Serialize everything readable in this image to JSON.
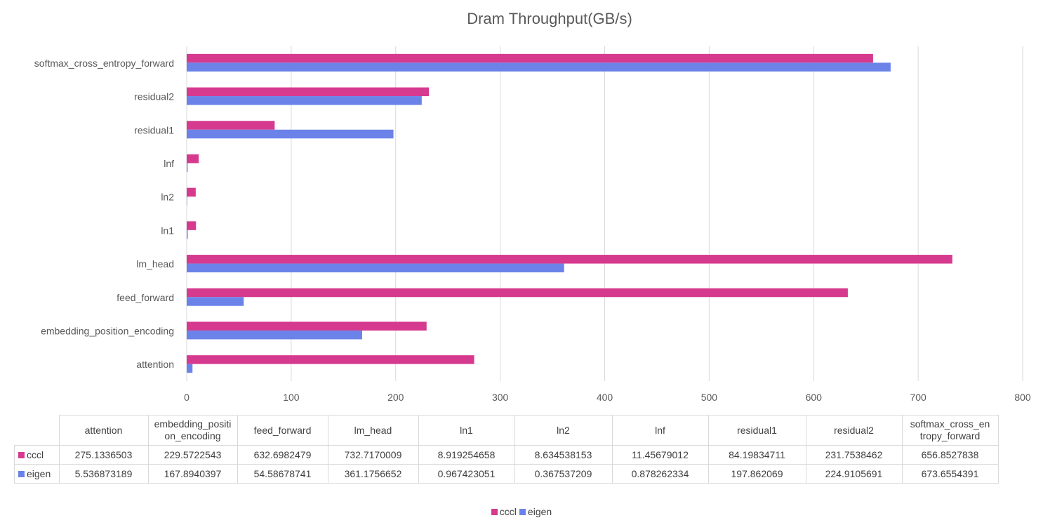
{
  "chart_data": {
    "type": "bar",
    "orientation": "horizontal",
    "title": "Dram Throughput(GB/s)",
    "xlabel": "",
    "ylabel": "",
    "xlim": [
      0,
      800
    ],
    "x_ticks": [
      "0",
      "100",
      "200",
      "300",
      "400",
      "500",
      "600",
      "700",
      "800"
    ],
    "grid": true,
    "legend_position": "bottom",
    "categories": [
      "attention",
      "embedding_position_encoding",
      "feed_forward",
      "lm_head",
      "ln1",
      "ln2",
      "lnf",
      "residual1",
      "residual2",
      "softmax_cross_entropy_forward"
    ],
    "table_headers": [
      "attention",
      "embedding_positi on_encoding",
      "feed_forward",
      "lm_head",
      "ln1",
      "ln2",
      "lnf",
      "residual1",
      "residual2",
      "softmax_cross_en tropy_forward"
    ],
    "series": [
      {
        "name": "cccl",
        "color": "#d63a8e",
        "values": [
          275.1336503,
          229.5722543,
          632.6982479,
          732.7170009,
          8.919254658,
          8.634538153,
          11.45679012,
          84.19834711,
          231.7538462,
          656.8527838
        ],
        "labels": [
          "275.1336503",
          "229.5722543",
          "632.6982479",
          "732.7170009",
          "8.919254658",
          "8.634538153",
          "11.45679012",
          "84.19834711",
          "231.7538462",
          "656.8527838"
        ]
      },
      {
        "name": "eigen",
        "color": "#6b83e8",
        "values": [
          5.536873189,
          167.8940397,
          54.58678741,
          361.1756652,
          0.967423051,
          0.367537209,
          0.878262334,
          197.862069,
          224.9105691,
          673.6554391
        ],
        "labels": [
          "5.536873189",
          "167.8940397",
          "54.58678741",
          "361.1756652",
          "0.967423051",
          "0.367537209",
          "0.878262334",
          "197.862069",
          "224.9105691",
          "673.6554391"
        ]
      }
    ]
  }
}
